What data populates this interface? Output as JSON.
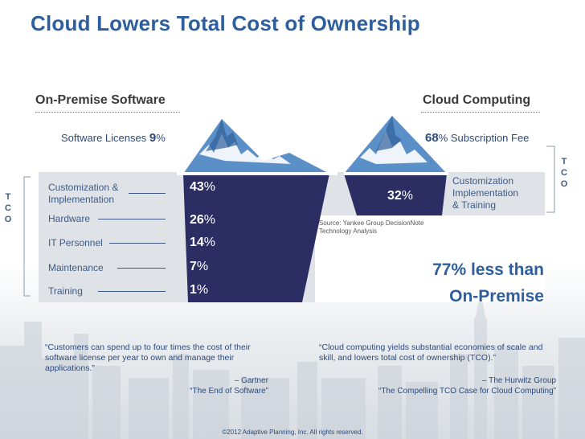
{
  "title": "Cloud Lowers Total Cost of Ownership",
  "on_premise": {
    "heading": "On-Premise Software",
    "license_label": "Software Licenses ",
    "license_value": "9",
    "license_unit": "%",
    "rows": [
      {
        "label": "Customization &\nImplementation",
        "value": "43",
        "unit": "%"
      },
      {
        "label": "Hardware",
        "value": "26",
        "unit": "%"
      },
      {
        "label": "IT Personnel",
        "value": "14",
        "unit": "%"
      },
      {
        "label": "Maintenance",
        "value": "7",
        "unit": "%"
      },
      {
        "label": "Training",
        "value": "1",
        "unit": "%"
      }
    ],
    "tco": [
      "T",
      "C",
      "O"
    ]
  },
  "cloud": {
    "heading": "Cloud Computing",
    "subscription_value": "68",
    "subscription_unit": "%",
    "subscription_label": " Subscription Fee",
    "row_label": "Customization\nImplementation\n& Training",
    "row_value": "32",
    "row_unit": "%",
    "tco": [
      "T",
      "C",
      "O"
    ]
  },
  "source": "Source:  Yankee Group DecisionNote Technology Analysis",
  "savings": {
    "line1": "77% less than",
    "line2": "On-Premise"
  },
  "quotes": {
    "left": {
      "text": "“Customers can spend up to four times the cost of their software license per year to own and manage their applications.”",
      "author": "– Gartner",
      "work": "“The End of Software”"
    },
    "right": {
      "text": "“Cloud computing yields substantial economies of scale and skill, and lowers total cost of ownership (TCO).”",
      "author": "– The Hurwitz Group",
      "work": "“The Compelling TCO Case for Cloud Computing”"
    }
  },
  "footer": "©2012 Adaptive Planning, Inc. All rights reserved.",
  "colors": {
    "navy": "#2b2d63",
    "accent_blue": "#2d5f9e",
    "panel_gray": "#dfe3e8",
    "ice_blue": "#5b8fc7"
  }
}
